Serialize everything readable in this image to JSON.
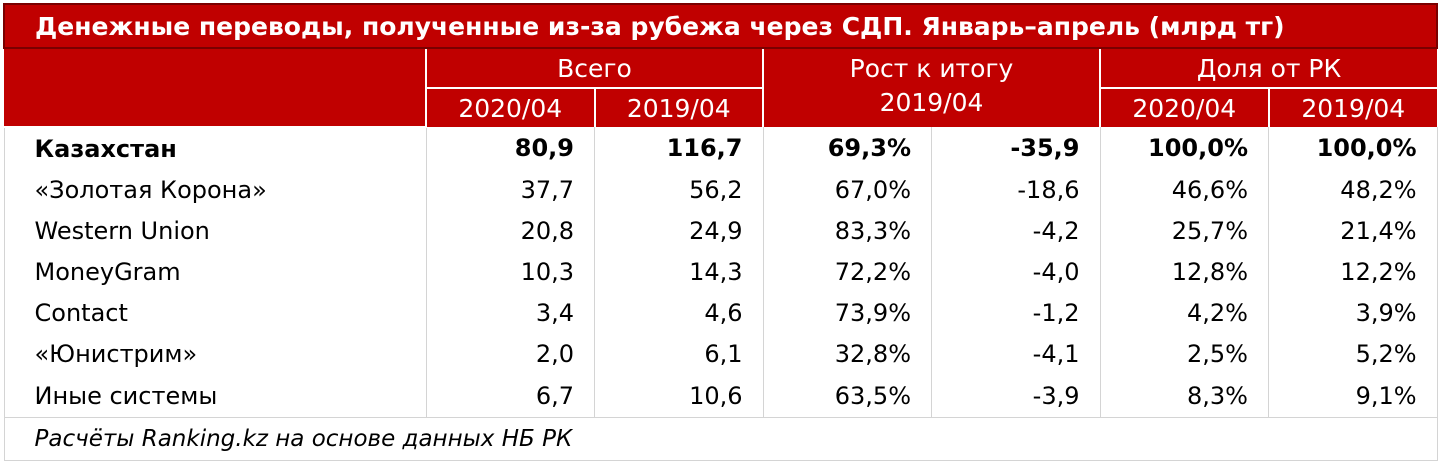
{
  "chart_data": {
    "type": "table",
    "title": "Денежные переводы, полученные из-за рубежа через СДП. Январь–апрель (млрд тг)",
    "group_headers": [
      "Всего",
      "Рост к итогу",
      "Доля от РК"
    ],
    "sub_headers": [
      "2020/04",
      "2019/04",
      "2019/04",
      "2020/04",
      "2019/04"
    ],
    "rows": [
      {
        "name": "Казахстан",
        "values": [
          "80,9",
          "116,7",
          "69,3%",
          "-35,9",
          "100,0%",
          "100,0%"
        ],
        "bold": true
      },
      {
        "name": "«Золотая Корона»",
        "values": [
          "37,7",
          "56,2",
          "67,0%",
          "-18,6",
          "46,6%",
          "48,2%"
        ]
      },
      {
        "name": "Western Union",
        "values": [
          "20,8",
          "24,9",
          "83,3%",
          "-4,2",
          "25,7%",
          "21,4%"
        ]
      },
      {
        "name": "MoneyGram",
        "values": [
          "10,3",
          "14,3",
          "72,2%",
          "-4,0",
          "12,8%",
          "12,2%"
        ]
      },
      {
        "name": "Contact",
        "values": [
          "3,4",
          "4,6",
          "73,9%",
          "-1,2",
          "4,2%",
          "3,9%"
        ]
      },
      {
        "name": "«Юнистрим»",
        "values": [
          "2,0",
          "6,1",
          "32,8%",
          "-4,1",
          "2,5%",
          "5,2%"
        ]
      },
      {
        "name": "Иные системы",
        "values": [
          "6,7",
          "10,6",
          "63,5%",
          "-3,9",
          "8,3%",
          "9,1%"
        ]
      }
    ],
    "source": "Расчёты Ranking.kz на основе данных НБ РК"
  },
  "colors": {
    "header_bg": "#c00000",
    "header_text": "#ffffff",
    "body_text": "#000000",
    "grid": "#d4d4d4"
  }
}
